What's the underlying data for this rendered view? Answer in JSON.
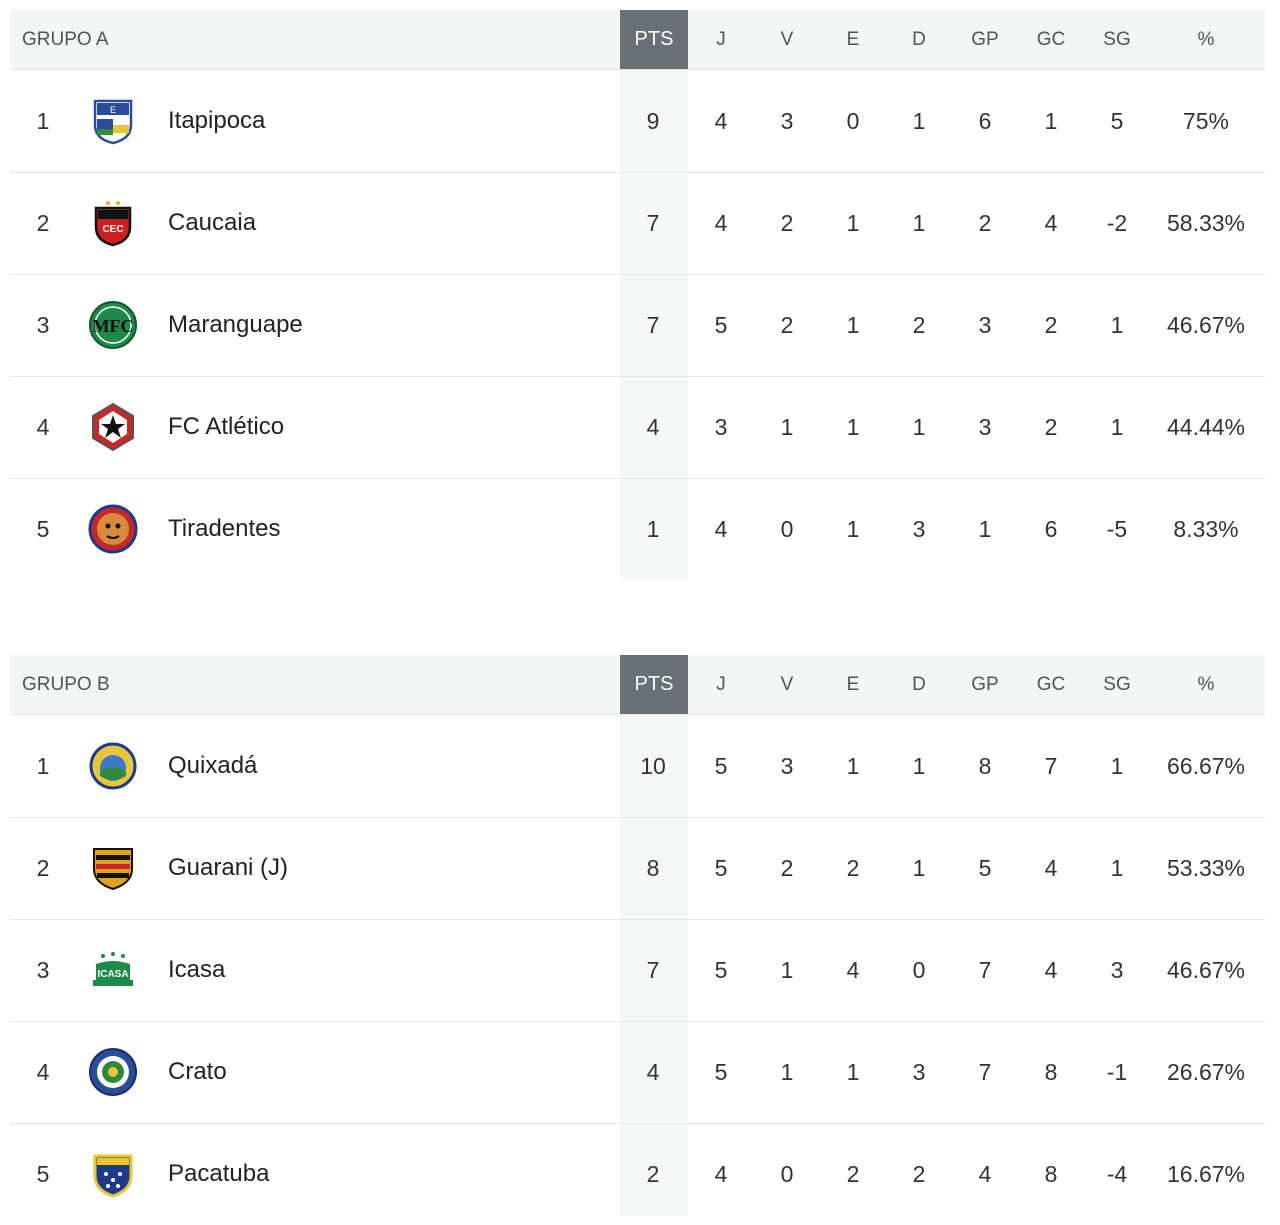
{
  "columns": {
    "pts": "PTS",
    "j": "J",
    "v": "V",
    "e": "E",
    "d": "D",
    "gp": "GP",
    "gc": "GC",
    "sg": "SG",
    "pct": "%"
  },
  "groups": [
    {
      "title": "GRUPO A",
      "teams": [
        {
          "pos": "1",
          "name": "Itapipoca",
          "logo": "itapipoca-crest-icon",
          "pts": "9",
          "j": "4",
          "v": "3",
          "e": "0",
          "d": "1",
          "gp": "6",
          "gc": "1",
          "sg": "5",
          "pct": "75%"
        },
        {
          "pos": "2",
          "name": "Caucaia",
          "logo": "caucaia-crest-icon",
          "pts": "7",
          "j": "4",
          "v": "2",
          "e": "1",
          "d": "1",
          "gp": "2",
          "gc": "4",
          "sg": "-2",
          "pct": "58.33%"
        },
        {
          "pos": "3",
          "name": "Maranguape",
          "logo": "maranguape-crest-icon",
          "pts": "7",
          "j": "5",
          "v": "2",
          "e": "1",
          "d": "2",
          "gp": "3",
          "gc": "2",
          "sg": "1",
          "pct": "46.67%"
        },
        {
          "pos": "4",
          "name": "FC Atlético",
          "logo": "fc-atletico-crest-icon",
          "pts": "4",
          "j": "3",
          "v": "1",
          "e": "1",
          "d": "1",
          "gp": "3",
          "gc": "2",
          "sg": "1",
          "pct": "44.44%"
        },
        {
          "pos": "5",
          "name": "Tiradentes",
          "logo": "tiradentes-crest-icon",
          "pts": "1",
          "j": "4",
          "v": "0",
          "e": "1",
          "d": "3",
          "gp": "1",
          "gc": "6",
          "sg": "-5",
          "pct": "8.33%"
        }
      ]
    },
    {
      "title": "GRUPO B",
      "teams": [
        {
          "pos": "1",
          "name": "Quixadá",
          "logo": "quixada-crest-icon",
          "pts": "10",
          "j": "5",
          "v": "3",
          "e": "1",
          "d": "1",
          "gp": "8",
          "gc": "7",
          "sg": "1",
          "pct": "66.67%"
        },
        {
          "pos": "2",
          "name": "Guarani (J)",
          "logo": "guarani-crest-icon",
          "pts": "8",
          "j": "5",
          "v": "2",
          "e": "2",
          "d": "1",
          "gp": "5",
          "gc": "4",
          "sg": "1",
          "pct": "53.33%"
        },
        {
          "pos": "3",
          "name": "Icasa",
          "logo": "icasa-crest-icon",
          "pts": "7",
          "j": "5",
          "v": "1",
          "e": "4",
          "d": "0",
          "gp": "7",
          "gc": "4",
          "sg": "3",
          "pct": "46.67%"
        },
        {
          "pos": "4",
          "name": "Crato",
          "logo": "crato-crest-icon",
          "pts": "4",
          "j": "5",
          "v": "1",
          "e": "1",
          "d": "3",
          "gp": "7",
          "gc": "8",
          "sg": "-1",
          "pct": "26.67%"
        },
        {
          "pos": "5",
          "name": "Pacatuba",
          "logo": "pacatuba-crest-icon",
          "pts": "2",
          "j": "4",
          "v": "0",
          "e": "2",
          "d": "2",
          "gp": "4",
          "gc": "8",
          "sg": "-4",
          "pct": "16.67%"
        }
      ]
    }
  ]
}
